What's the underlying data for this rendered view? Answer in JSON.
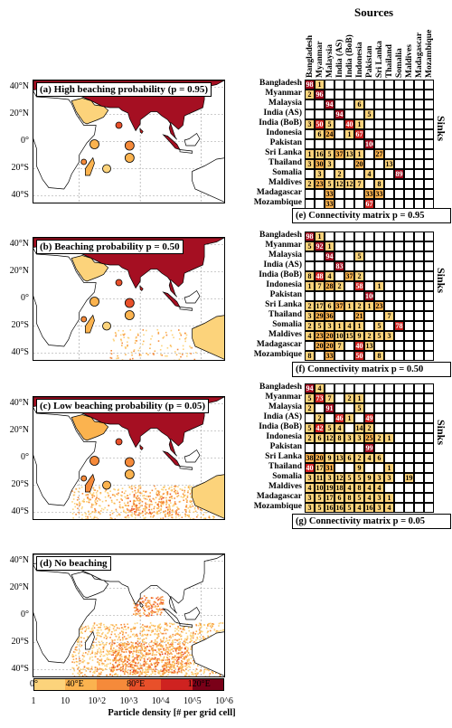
{
  "colors": {
    "land": "#ffffff",
    "coast": "#000000",
    "grid": "#9a9a9a",
    "scale": [
      "#fcd37b",
      "#fbb34f",
      "#f58a3a",
      "#e8502a",
      "#cf2220",
      "#a50f22",
      "#7a0018"
    ]
  },
  "maps": [
    {
      "key": "a",
      "title": "(a) High beaching probability (p = 0.95)"
    },
    {
      "key": "b",
      "title": "(b) Beaching probability p = 0.50"
    },
    {
      "key": "c",
      "title": "(c) Low beaching probability (p = 0.05)"
    },
    {
      "key": "d",
      "title": "(d) No beaching"
    }
  ],
  "lat_ticks": [
    "40°N",
    "20°N",
    "0°",
    "20°S",
    "40°S"
  ],
  "lon_ticks": [
    "0°",
    "40°E",
    "80°E",
    "120°E"
  ],
  "colorbar": {
    "ticks": [
      "1",
      "10",
      "10^2",
      "10^3",
      "10^4",
      "10^5",
      "10^6"
    ],
    "label": "Particle density [# per grid cell]"
  },
  "matrix": {
    "sources_title": "Sources",
    "sinks_title": "Sinks",
    "countries": [
      "Bangladesh",
      "Myanmar",
      "Malaysia",
      "India (AS)",
      "India (BoB)",
      "Indonesia",
      "Pakistan",
      "Sri Lanka",
      "Thailand",
      "Somalia",
      "Maldives",
      "Madagascar",
      "Mozambique"
    ],
    "panels": [
      {
        "caption": "(e) Connectivity matrix p = 0.95",
        "values": [
          [
            "98",
            "1",
            "",
            "",
            "",
            "",
            "",
            "",
            "",
            "",
            "",
            "",
            ""
          ],
          [
            "2",
            "96",
            "",
            "",
            "",
            "",
            "",
            "",
            "",
            "",
            "",
            "",
            ""
          ],
          [
            "",
            "",
            "94",
            "",
            "",
            "6",
            "",
            "",
            "",
            "",
            "",
            "",
            ""
          ],
          [
            "",
            "",
            "",
            "94",
            "",
            "",
            "5",
            "",
            "",
            "",
            "",
            "",
            ""
          ],
          [
            "3",
            "50",
            "5",
            "",
            "40",
            "1",
            "",
            "",
            "",
            "",
            "",
            "",
            ""
          ],
          [
            "",
            "6",
            "24",
            "",
            "1",
            "67",
            "",
            "",
            "",
            "",
            "",
            "",
            ""
          ],
          [
            "",
            "",
            "",
            "",
            "",
            "",
            "100",
            "",
            "",
            "",
            "",
            "",
            ""
          ],
          [
            "1",
            "16",
            "5",
            "37",
            "13",
            "1",
            "",
            "27",
            "",
            "",
            "",
            "",
            ""
          ],
          [
            "3",
            "30",
            "3",
            "",
            "",
            "20",
            "",
            "",
            "13",
            "",
            "",
            "",
            ""
          ],
          [
            "",
            "3",
            "",
            "2",
            "",
            "",
            "4",
            "",
            "",
            "89",
            "",
            "",
            ""
          ],
          [
            "2",
            "23",
            "5",
            "12",
            "12",
            "7",
            "",
            "8",
            "",
            "",
            "",
            "",
            ""
          ],
          [
            "",
            "",
            "33",
            "",
            "",
            "",
            "33",
            "33",
            "",
            "",
            "",
            "",
            ""
          ],
          [
            "",
            "",
            "33",
            "",
            "",
            "",
            "67",
            "",
            "",
            "",
            "",
            "",
            ""
          ]
        ]
      },
      {
        "caption": "(f) Connectivity matrix p = 0.50",
        "values": [
          [
            "98",
            "1",
            "",
            "",
            "",
            "",
            "",
            "",
            "",
            "",
            "",
            "",
            ""
          ],
          [
            "5",
            "92",
            "1",
            "",
            "",
            "",
            "",
            "",
            "",
            "",
            "",
            "",
            ""
          ],
          [
            "",
            "",
            "94",
            "",
            "",
            "5",
            "",
            "",
            "",
            "",
            "",
            "",
            ""
          ],
          [
            "",
            "",
            "",
            "83",
            "",
            "",
            "",
            "",
            "",
            "",
            "",
            "",
            ""
          ],
          [
            "8",
            "48",
            "4",
            "",
            "37",
            "2",
            "",
            "",
            "",
            "",
            "",
            "",
            ""
          ],
          [
            "1",
            "7",
            "28",
            "2",
            "",
            "58",
            "",
            "1",
            "",
            "",
            "",
            "",
            ""
          ],
          [
            "",
            "",
            "",
            "",
            "",
            "",
            "100",
            "",
            "",
            "",
            "",
            "",
            ""
          ],
          [
            "2",
            "17",
            "6",
            "37",
            "1",
            "2",
            "1",
            "23",
            "",
            "",
            "",
            "",
            ""
          ],
          [
            "3",
            "29",
            "36",
            "",
            "",
            "21",
            "",
            "",
            "7",
            "",
            "",
            "",
            ""
          ],
          [
            "2",
            "5",
            "3",
            "1",
            "4",
            "1",
            "",
            "5",
            "",
            "78",
            "",
            "",
            ""
          ],
          [
            "4",
            "23",
            "20",
            "10",
            "15",
            "9",
            "2",
            "5",
            "3",
            "",
            "",
            "",
            ""
          ],
          [
            "",
            "20",
            "20",
            "7",
            "",
            "40",
            "13",
            "",
            "",
            "",
            "",
            "",
            ""
          ],
          [
            "8",
            "",
            "33",
            "",
            "",
            "50",
            "",
            "8",
            "",
            "",
            "",
            "",
            ""
          ]
        ]
      },
      {
        "caption": "(g) Connectivity matrix p = 0.05",
        "values": [
          [
            "94",
            "4",
            "",
            "",
            "",
            "",
            "",
            "",
            "",
            "",
            "",
            "",
            ""
          ],
          [
            "5",
            "73",
            "7",
            "",
            "2",
            "1",
            "",
            "",
            "",
            "",
            "",
            "",
            ""
          ],
          [
            "2",
            "",
            "91",
            "",
            "",
            "5",
            "",
            "",
            "",
            "",
            "",
            "",
            ""
          ],
          [
            "",
            "2",
            "",
            "46",
            "1",
            "",
            "49",
            "",
            "",
            "",
            "",
            "",
            ""
          ],
          [
            "5",
            "42",
            "5",
            "4",
            "",
            "14",
            "2",
            "",
            "",
            "",
            "",
            "",
            ""
          ],
          [
            "2",
            "6",
            "12",
            "8",
            "3",
            "3",
            "25",
            "2",
            "1",
            "",
            "",
            "",
            ""
          ],
          [
            "",
            "",
            "",
            "",
            "",
            "",
            "99",
            "",
            "",
            "",
            "",
            "",
            ""
          ],
          [
            "38",
            "20",
            "9",
            "13",
            "6",
            "2",
            "4",
            "6",
            "",
            "",
            "",
            "",
            ""
          ],
          [
            "40",
            "17",
            "31",
            "",
            "",
            "9",
            "",
            "",
            "1",
            "",
            "",
            "",
            ""
          ],
          [
            "3",
            "11",
            "3",
            "12",
            "5",
            "5",
            "9",
            "3",
            "3",
            "",
            "19",
            "",
            ""
          ],
          [
            "4",
            "10",
            "19",
            "18",
            "4",
            "8",
            "4",
            "4",
            "",
            "",
            "",
            "",
            ""
          ],
          [
            "3",
            "5",
            "17",
            "6",
            "8",
            "5",
            "4",
            "3",
            "1",
            "",
            "",
            "",
            ""
          ],
          [
            "3",
            "5",
            "16",
            "16",
            "5",
            "4",
            "16",
            "3",
            "4",
            "",
            "",
            "",
            ""
          ]
        ]
      }
    ]
  }
}
